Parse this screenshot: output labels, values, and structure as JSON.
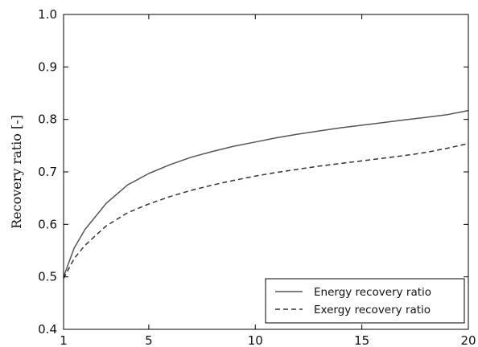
{
  "chart_data": {
    "type": "line",
    "xlabel": "",
    "ylabel": "Recovery ratio [-]",
    "xlim": [
      1,
      20
    ],
    "ylim": [
      0.4,
      1.0
    ],
    "xticks": [
      1,
      5,
      10,
      15,
      20
    ],
    "xtick_labels": [
      "1",
      "5",
      "10",
      "15",
      "20"
    ],
    "yticks": [
      0.4,
      0.5,
      0.6,
      0.7,
      0.8,
      0.9,
      1.0
    ],
    "ytick_labels": [
      "0.4",
      "0.5",
      "0.6",
      "0.7",
      "0.8",
      "0.9",
      "1.0"
    ],
    "grid": false,
    "legend_position": "bottom-right",
    "series": [
      {
        "name": "Energy recovery ratio",
        "style": "solid",
        "color": "#555555",
        "x": [
          1,
          1.5,
          2,
          3,
          4,
          5,
          6,
          7,
          8,
          9,
          10,
          11,
          12,
          13,
          14,
          15,
          16,
          17,
          18,
          19,
          20
        ],
        "y": [
          0.5,
          0.555,
          0.59,
          0.64,
          0.675,
          0.697,
          0.714,
          0.728,
          0.739,
          0.749,
          0.757,
          0.765,
          0.772,
          0.778,
          0.784,
          0.789,
          0.794,
          0.799,
          0.804,
          0.809,
          0.817
        ]
      },
      {
        "name": "Exergy recovery ratio",
        "style": "dashed",
        "color": "#333333",
        "x": [
          1,
          1.5,
          2,
          3,
          4,
          5,
          6,
          7,
          8,
          9,
          10,
          11,
          12,
          13,
          14,
          15,
          16,
          17,
          18,
          19,
          20
        ],
        "y": [
          0.497,
          0.535,
          0.56,
          0.597,
          0.622,
          0.639,
          0.653,
          0.665,
          0.675,
          0.684,
          0.692,
          0.699,
          0.705,
          0.711,
          0.716,
          0.721,
          0.726,
          0.731,
          0.737,
          0.745,
          0.754
        ]
      }
    ]
  }
}
